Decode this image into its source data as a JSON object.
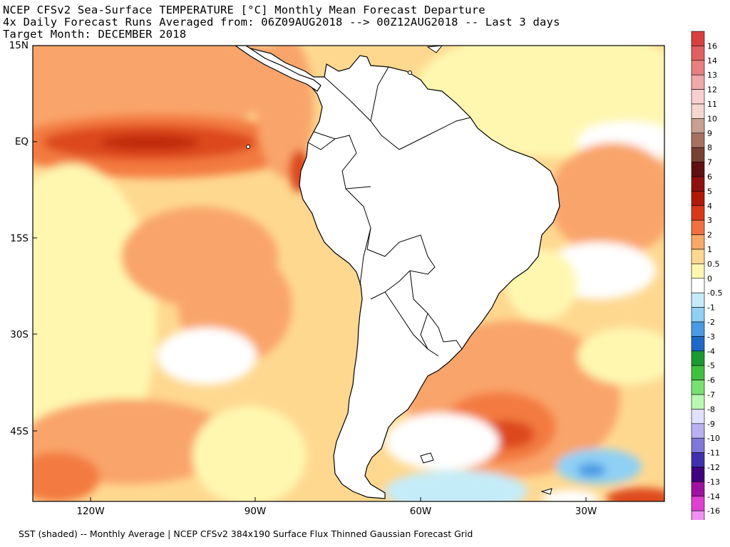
{
  "header": {
    "line1": "NCEP CFSv2 Sea-Surface TEMPERATURE [°C] Monthly Mean Forecast Departure",
    "line2": "4x Daily Forecast Runs Averaged from: 06Z09AUG2018 --> 00Z12AUG2018 -- Last 3 days",
    "line3": "Target Month: DECEMBER 2018"
  },
  "footer": {
    "text": "SST (shaded) -- Monthly Average | NCEP CFSv2 384x190 Surface Flux Thinned Gaussian Forecast Grid"
  },
  "map": {
    "lat_labels": [
      "15N",
      "EQ",
      "15S",
      "30S",
      "45S"
    ],
    "lon_labels": [
      "120W",
      "90W",
      "60W",
      "30W"
    ],
    "ocean_colors": {
      "zero": "#ffffff",
      "half": "#fff7b0",
      "one": "#ffd890",
      "two": "#f9a46a",
      "three": "#f37a40",
      "four": "#dd4a1c",
      "five": "#c12a0e",
      "neg_half": "#c4ecf8",
      "neg_one": "#8fd0f4",
      "neg_two": "#4a9ae4"
    },
    "land_color": "#ffffff",
    "coast_color": "#000000"
  },
  "colorbar": {
    "labels": [
      "16",
      "14",
      "13",
      "12",
      "11",
      "10",
      "9",
      "8",
      "7",
      "6",
      "5",
      "4",
      "3",
      "2",
      "1",
      "0.5",
      "0",
      "-0.5",
      "-1",
      "-2",
      "-3",
      "-4",
      "-5",
      "-6",
      "-7",
      "-8",
      "-9",
      "-10",
      "-11",
      "-12",
      "-13",
      "-14",
      "-16"
    ],
    "colors": [
      "#d84040",
      "#e06060",
      "#e88080",
      "#f0a8a8",
      "#f8d0d0",
      "#f4d8d0",
      "#c8a090",
      "#a87060",
      "#7a4030",
      "#601010",
      "#901010",
      "#b01808",
      "#d83818",
      "#f07040",
      "#f8a868",
      "#fcd890",
      "#fff7b0",
      "#ffffff",
      "#c4ecf8",
      "#8fd0f4",
      "#4a9ae4",
      "#1e68c8",
      "#1a9a30",
      "#40c040",
      "#78e070",
      "#b8f8b0",
      "#e0e0ff",
      "#b8b0f0",
      "#8078d8",
      "#4030b0",
      "#400080",
      "#a010a0",
      "#e040d0",
      "#f090f0"
    ]
  }
}
